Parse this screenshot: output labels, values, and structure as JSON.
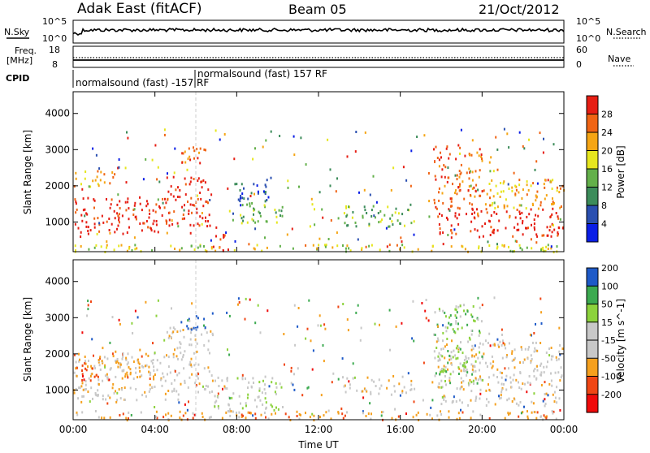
{
  "header": {
    "title": "Adak East (fitACF)",
    "beam": "Beam 05",
    "date": "21/Oct/2012"
  },
  "strip_labels": {
    "nsky": "N.Sky",
    "nsky_top": "10^5",
    "nsky_bottom": "10^0",
    "nsearch": "N.Search",
    "nsearch_top": "10^5",
    "nsearch_bottom": "10^0",
    "freq_line1": "Freq.",
    "freq_line2": "[MHz]",
    "freq_top": "18",
    "freq_bottom": "8",
    "nave": "Nave",
    "nave_top": "60",
    "nave_bottom": "0",
    "cpid": "CPID",
    "cpid_label_1": "normalsound (fast) -157 RF",
    "cpid_label_2": "normalsound (fast) 157 RF"
  },
  "colors": {
    "power_scale": [
      "#0a1ee6",
      "#2a4fb0",
      "#3c8c5a",
      "#63b04a",
      "#e6e61e",
      "#f5a514",
      "#f06414",
      "#e61e14"
    ],
    "velocity_scale": [
      "#f00a0a",
      "#f04614",
      "#f5a01e",
      "#c8c8c8",
      "#c8c8c8",
      "#8cd23c",
      "#3caa50",
      "#1e5ac8"
    ]
  },
  "chart_data": [
    {
      "type": "heatmap",
      "ylabel": "Slant Range [km]",
      "xlabel": "",
      "yticks": [
        "1000",
        "2000",
        "3000",
        "4000"
      ],
      "xticks": [
        "00:00",
        "04:00",
        "08:00",
        "12:00",
        "16:00",
        "20:00",
        "00:00"
      ],
      "colorbar_label": "Power [dB]",
      "colorbar_ticks": [
        "4",
        "8",
        "12",
        "16",
        "20",
        "24",
        "28"
      ],
      "ylim": [
        180,
        4600
      ],
      "x_range_hours": [
        0,
        24
      ],
      "regions": [
        {
          "t0": 0.0,
          "t1": 4.5,
          "r0": 700,
          "r1": 1700,
          "level": 7
        },
        {
          "t0": 4.5,
          "t1": 6.8,
          "r0": 900,
          "r1": 2300,
          "level": 7
        },
        {
          "t0": 5.0,
          "t1": 6.5,
          "r0": 2600,
          "r1": 3100,
          "level": 6
        },
        {
          "t0": 0.0,
          "t1": 2.0,
          "r0": 2000,
          "r1": 2450,
          "level": 5
        },
        {
          "t0": 6.8,
          "t1": 7.6,
          "r0": 200,
          "r1": 900,
          "level": 7
        },
        {
          "t0": 7.6,
          "t1": 10.3,
          "r0": 1000,
          "r1": 1600,
          "level": 3
        },
        {
          "t0": 7.3,
          "t1": 9.6,
          "r0": 1600,
          "r1": 2100,
          "level": 1
        },
        {
          "t0": 13.2,
          "t1": 16.7,
          "r0": 900,
          "r1": 1500,
          "level": 3
        },
        {
          "t0": 17.8,
          "t1": 24.0,
          "r0": 600,
          "r1": 1400,
          "level": 7
        },
        {
          "t0": 17.6,
          "t1": 20.0,
          "r0": 1400,
          "r1": 3200,
          "level": 6
        },
        {
          "t0": 20.0,
          "t1": 24.0,
          "r0": 1400,
          "r1": 2200,
          "level": 5
        },
        {
          "t0": 0.0,
          "t1": 24.0,
          "r0": 200,
          "r1": 400,
          "level": 4
        }
      ]
    },
    {
      "type": "heatmap",
      "ylabel": "Slant Range [km]",
      "xlabel": "Time UT",
      "yticks": [
        "1000",
        "2000",
        "3000",
        "4000"
      ],
      "xticks": [
        "00:00",
        "04:00",
        "08:00",
        "12:00",
        "16:00",
        "20:00",
        "00:00"
      ],
      "colorbar_label": "Velocity [m s^-1]",
      "colorbar_ticks": [
        "-200",
        "-100",
        "-50",
        "-15",
        "15",
        "50",
        "100",
        "200"
      ],
      "ylim": [
        180,
        4600
      ],
      "x_range_hours": [
        0,
        24
      ],
      "regions": [
        {
          "t0": 0.0,
          "t1": 4.5,
          "r0": 700,
          "r1": 1900,
          "level": 3
        },
        {
          "t0": 4.5,
          "t1": 6.8,
          "r0": 900,
          "r1": 2800,
          "level": 3
        },
        {
          "t0": 5.0,
          "t1": 6.6,
          "r0": 2700,
          "r1": 3100,
          "level": 7
        },
        {
          "t0": 0.0,
          "t1": 4.0,
          "r0": 1300,
          "r1": 2100,
          "level": 2
        },
        {
          "t0": 6.8,
          "t1": 10.3,
          "r0": 400,
          "r1": 1400,
          "level": 4
        },
        {
          "t0": 13.2,
          "t1": 16.7,
          "r0": 900,
          "r1": 1400,
          "level": 3
        },
        {
          "t0": 17.6,
          "t1": 24.0,
          "r0": 600,
          "r1": 2400,
          "level": 3
        },
        {
          "t0": 17.6,
          "t1": 20.0,
          "r0": 1200,
          "r1": 3400,
          "level": 5
        },
        {
          "t0": 0.0,
          "t1": 24.0,
          "r0": 200,
          "r1": 450,
          "level": 2
        }
      ]
    }
  ]
}
